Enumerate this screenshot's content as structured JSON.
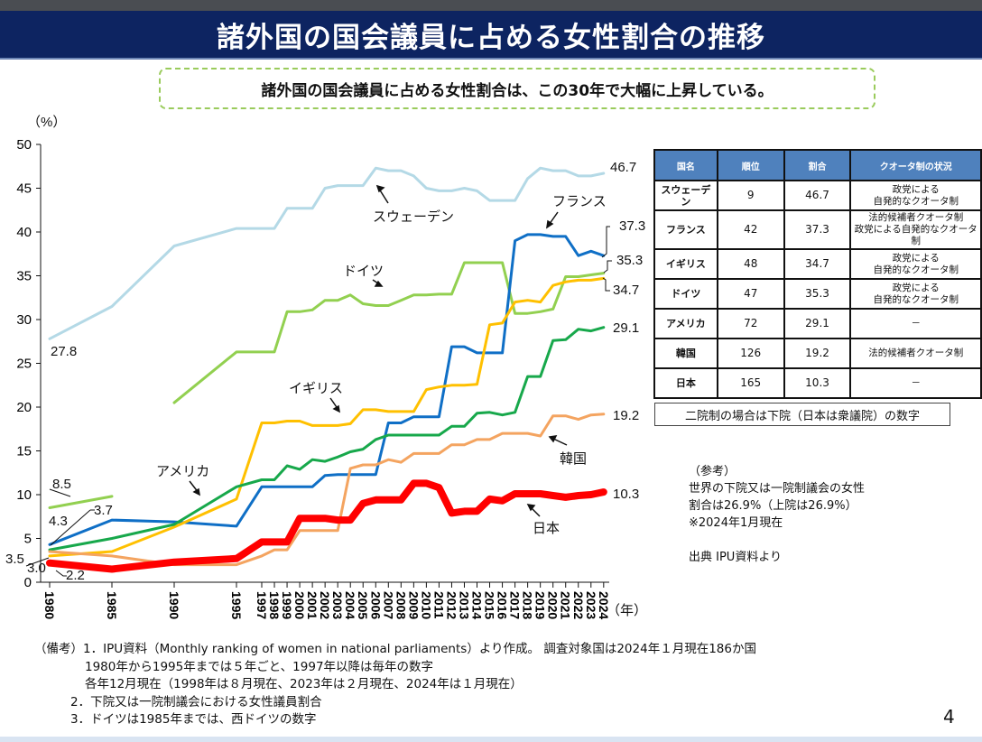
{
  "header": {
    "title": "諸外国の国会議員に占める女性割合の推移"
  },
  "subtitle": "諸外国の国会議員に占める女性割合は、この30年で大幅に上昇している。",
  "chart_data": {
    "type": "line",
    "ylabel": "（%）",
    "xlabel": "（年）",
    "ylim": [
      0,
      50
    ],
    "yticks": [
      0,
      5,
      10,
      15,
      20,
      25,
      30,
      35,
      40,
      45,
      50
    ],
    "categories": [
      "1980",
      "1985",
      "1990",
      "1995",
      "1997",
      "1998",
      "1999",
      "2000",
      "2001",
      "2002",
      "2003",
      "2004",
      "2005",
      "2006",
      "2007",
      "2008",
      "2009",
      "2010",
      "2011",
      "2012",
      "2013",
      "2014",
      "2015",
      "2016",
      "2017",
      "2018",
      "2019",
      "2020",
      "2021",
      "2022",
      "2023",
      "2024"
    ],
    "series": [
      {
        "name": "スウェーデン",
        "color": "#b4d9e6",
        "width": 3,
        "values": [
          27.8,
          31.5,
          38.4,
          40.4,
          40.4,
          40.4,
          42.7,
          42.7,
          42.7,
          45.0,
          45.3,
          45.3,
          45.3,
          47.3,
          47.0,
          47.0,
          46.4,
          45.0,
          44.7,
          44.7,
          45.0,
          44.7,
          43.6,
          43.6,
          43.6,
          46.1,
          47.3,
          47.0,
          47.0,
          46.4,
          46.4,
          46.7
        ]
      },
      {
        "name": "ドイツ",
        "color": "#92d050",
        "width": 3,
        "values": [
          8.5,
          9.8,
          20.5,
          26.3,
          26.3,
          26.3,
          30.9,
          30.9,
          31.1,
          32.2,
          32.2,
          32.8,
          31.8,
          31.6,
          31.6,
          32.2,
          32.8,
          32.8,
          32.9,
          32.9,
          36.5,
          36.5,
          36.5,
          36.5,
          30.7,
          30.7,
          30.9,
          31.2,
          34.9,
          34.9,
          35.1,
          35.3
        ],
        "break_after": "1985"
      },
      {
        "name": "フランス",
        "color": "#0f6fc6",
        "width": 3,
        "values": [
          4.3,
          7.1,
          6.9,
          6.4,
          10.9,
          10.9,
          10.9,
          10.9,
          10.9,
          12.2,
          12.3,
          12.3,
          12.3,
          12.3,
          18.2,
          18.2,
          18.9,
          18.9,
          18.9,
          26.9,
          26.9,
          26.2,
          26.2,
          26.2,
          39.0,
          39.7,
          39.7,
          39.5,
          39.5,
          37.3,
          37.8,
          37.3
        ]
      },
      {
        "name": "イギリス",
        "color": "#ffc000",
        "width": 3,
        "values": [
          3.0,
          3.5,
          6.3,
          9.5,
          18.2,
          18.2,
          18.4,
          18.4,
          17.9,
          17.9,
          17.9,
          18.1,
          19.7,
          19.7,
          19.5,
          19.5,
          19.5,
          22.0,
          22.3,
          22.5,
          22.5,
          22.6,
          29.4,
          29.6,
          32.0,
          32.2,
          32.0,
          33.9,
          34.3,
          34.5,
          34.5,
          34.7
        ]
      },
      {
        "name": "アメリカ",
        "color": "#17a84b",
        "width": 3,
        "values": [
          3.7,
          5.0,
          6.6,
          10.9,
          11.7,
          11.7,
          13.3,
          12.9,
          14.0,
          13.8,
          14.3,
          14.9,
          15.2,
          16.3,
          16.8,
          16.8,
          16.8,
          16.8,
          16.8,
          17.8,
          17.8,
          19.3,
          19.4,
          19.1,
          19.4,
          23.5,
          23.5,
          27.6,
          27.7,
          28.9,
          28.7,
          29.1
        ]
      },
      {
        "name": "韓国",
        "color": "#f4a460",
        "width": 3,
        "values": [
          3.5,
          3.0,
          2.0,
          2.0,
          3.0,
          3.7,
          3.7,
          5.9,
          5.9,
          5.9,
          5.9,
          13.0,
          13.4,
          13.4,
          14.0,
          13.7,
          14.7,
          14.7,
          14.7,
          15.7,
          15.7,
          16.3,
          16.3,
          17.0,
          17.0,
          17.0,
          16.7,
          19.0,
          19.0,
          18.6,
          19.1,
          19.2
        ]
      },
      {
        "name": "日本",
        "color": "#ff0000",
        "width": 8,
        "values": [
          2.2,
          1.5,
          2.3,
          2.7,
          4.6,
          4.6,
          4.6,
          7.3,
          7.3,
          7.3,
          7.1,
          7.1,
          9.0,
          9.4,
          9.4,
          9.4,
          11.3,
          11.3,
          10.8,
          7.9,
          8.1,
          8.1,
          9.5,
          9.3,
          10.1,
          10.1,
          10.1,
          9.9,
          9.7,
          9.9,
          10.0,
          10.3
        ]
      }
    ],
    "end_labels": [
      "46.7",
      "37.3",
      "35.3",
      "34.7",
      "29.1",
      "19.2",
      "10.3"
    ],
    "start_labels": [
      "27.8",
      "8.5",
      "4.3",
      "3.7",
      "3.5",
      "3.0",
      "2.2"
    ],
    "country_labels": [
      "スウェーデン",
      "フランス",
      "ドイツ",
      "イギリス",
      "アメリカ",
      "韓国",
      "日本"
    ]
  },
  "table": {
    "headers": [
      "国名",
      "順位",
      "割合",
      "クオータ制の状況"
    ],
    "rows": [
      {
        "country": "スウェーデン",
        "rank": "9",
        "ratio": "46.7",
        "quota1": "政党による",
        "quota2": "自発的なクオータ制"
      },
      {
        "country": "フランス",
        "rank": "42",
        "ratio": "37.3",
        "quota1": "法的候補者クオータ制",
        "quota2": "政党による自発的なクオータ制"
      },
      {
        "country": "イギリス",
        "rank": "48",
        "ratio": "34.7",
        "quota1": "政党による",
        "quota2": "自発的なクオータ制"
      },
      {
        "country": "ドイツ",
        "rank": "47",
        "ratio": "35.3",
        "quota1": "政党による",
        "quota2": "自発的なクオータ制"
      },
      {
        "country": "アメリカ",
        "rank": "72",
        "ratio": "29.1",
        "quota1": "－",
        "quota2": ""
      },
      {
        "country": "韓国",
        "rank": "126",
        "ratio": "19.2",
        "quota1": "法的候補者クオータ制",
        "quota2": ""
      },
      {
        "country": "日本",
        "rank": "165",
        "ratio": "10.3",
        "quota1": "－",
        "quota2": ""
      }
    ],
    "note": "二院制の場合は下院（日本は衆議院）の数字"
  },
  "reference": [
    "（参考）",
    "世界の下院又は一院制議会の女性",
    "割合は26.9%（上院は26.9%）",
    "※2024年1月現在",
    "",
    "出典  IPU資料より"
  ],
  "notes": [
    "（備考）1．IPU資料（Monthly ranking of women in national parliaments）より作成。 調査対象国は2024年１月現在186か国",
    "1980年から1995年までは５年ごと、1997年以降は毎年の数字",
    "各年12月現在（1998年は８月現在、2023年は２月現在、2024年は１月現在）",
    "2．下院又は一院制議会における女性議員割合",
    "3．ドイツは1985年までは、西ドイツの数字"
  ],
  "page_number": "4"
}
